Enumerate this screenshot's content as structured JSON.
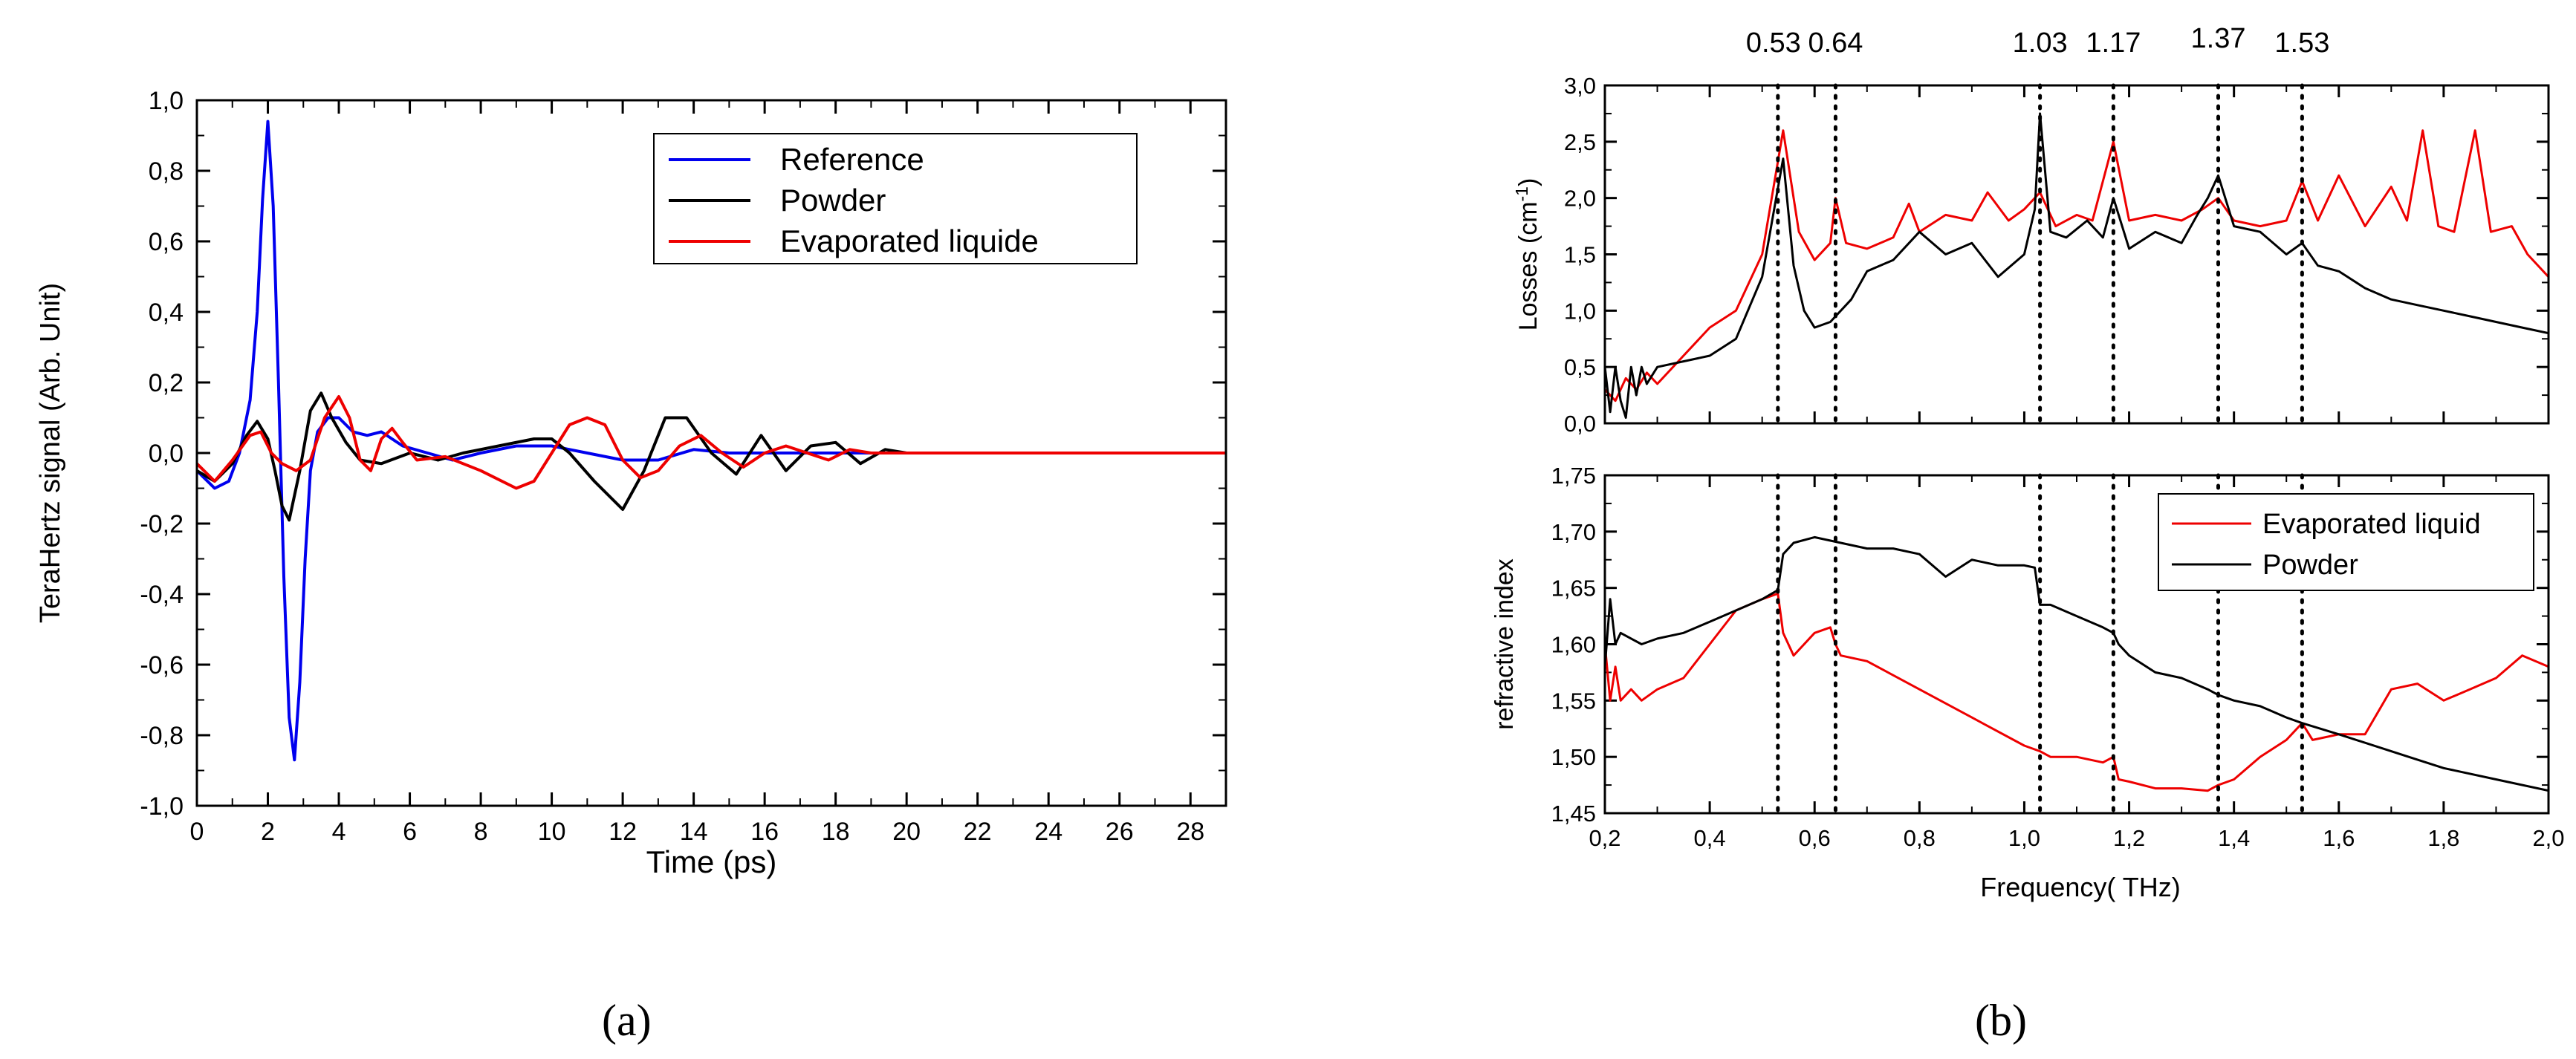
{
  "chart_data": [
    {
      "panel": "a",
      "type": "line",
      "caption": "(a)",
      "title": "",
      "xlabel": "Time (ps)",
      "ylabel": "TeraHertz signal (Arb. Unit)",
      "xlim": [
        0,
        29
      ],
      "ylim": [
        -1.0,
        1.0
      ],
      "xticks": [
        0,
        2,
        4,
        6,
        8,
        10,
        12,
        14,
        16,
        18,
        20,
        22,
        24,
        26,
        28
      ],
      "yticks": [
        -1.0,
        -0.8,
        -0.6,
        -0.4,
        -0.2,
        0.0,
        0.2,
        0.4,
        0.6,
        0.8,
        1.0
      ],
      "tick_labels_y": [
        "-1,0",
        "-0,8",
        "-0,6",
        "-0,4",
        "-0,2",
        "0,0",
        "0,2",
        "0,4",
        "0,6",
        "0,8",
        "1,0"
      ],
      "tick_labels_x": [
        "0",
        "2",
        "4",
        "6",
        "8",
        "10",
        "12",
        "14",
        "16",
        "18",
        "20",
        "22",
        "24",
        "26",
        "28"
      ],
      "legend_position": "top-right",
      "series": [
        {
          "name": "Reference",
          "color": "#0000ee",
          "x": [
            0,
            0.5,
            0.9,
            1.2,
            1.5,
            1.7,
            1.85,
            2.0,
            2.15,
            2.3,
            2.45,
            2.6,
            2.75,
            2.9,
            3.05,
            3.2,
            3.4,
            3.7,
            4.0,
            4.4,
            4.8,
            5.2,
            5.8,
            6.5,
            7.2,
            8.0,
            9.0,
            10.0,
            11.0,
            12.0,
            13.0,
            14.0,
            15.0,
            16.0,
            17.0,
            18.0,
            19.0,
            20.0,
            22.0,
            24.0,
            26.0,
            28.0,
            29.0
          ],
          "values": [
            -0.05,
            -0.1,
            -0.08,
            0.0,
            0.15,
            0.4,
            0.72,
            0.94,
            0.7,
            0.2,
            -0.35,
            -0.75,
            -0.87,
            -0.65,
            -0.3,
            -0.05,
            0.06,
            0.1,
            0.1,
            0.06,
            0.05,
            0.06,
            0.02,
            0.0,
            -0.02,
            0.0,
            0.02,
            0.02,
            0.0,
            -0.02,
            -0.02,
            0.01,
            0.0,
            0.0,
            0.0,
            0.0,
            0.0,
            0.0,
            0.0,
            0.0,
            0.0,
            0.0,
            0.0
          ]
        },
        {
          "name": "Powder",
          "color": "#000000",
          "x": [
            0,
            0.5,
            1.0,
            1.4,
            1.7,
            2.0,
            2.2,
            2.4,
            2.6,
            2.9,
            3.2,
            3.5,
            3.8,
            4.2,
            4.6,
            5.2,
            6.0,
            6.8,
            7.5,
            8.5,
            9.5,
            10.0,
            10.5,
            11.2,
            12.0,
            12.6,
            13.2,
            13.8,
            14.5,
            15.2,
            15.9,
            16.6,
            17.3,
            18.0,
            18.7,
            19.4,
            20.0,
            21.0,
            22.0,
            24.0,
            26.0,
            28.0,
            29.0
          ],
          "values": [
            -0.05,
            -0.08,
            -0.03,
            0.05,
            0.09,
            0.04,
            -0.05,
            -0.15,
            -0.19,
            -0.05,
            0.12,
            0.17,
            0.1,
            0.03,
            -0.02,
            -0.03,
            0.0,
            -0.02,
            0.0,
            0.02,
            0.04,
            0.04,
            0.0,
            -0.08,
            -0.16,
            -0.05,
            0.1,
            0.1,
            0.0,
            -0.06,
            0.05,
            -0.05,
            0.02,
            0.03,
            -0.03,
            0.01,
            0.0,
            0.0,
            0.0,
            0.0,
            0.0,
            0.0,
            0.0
          ]
        },
        {
          "name": "Evaporated liquide",
          "color": "#ee0000",
          "x": [
            0,
            0.5,
            1.0,
            1.5,
            1.8,
            2.1,
            2.4,
            2.8,
            3.2,
            3.6,
            4.0,
            4.3,
            4.6,
            4.9,
            5.2,
            5.5,
            5.8,
            6.2,
            7.0,
            8.0,
            9.0,
            9.5,
            10.0,
            10.5,
            11.0,
            11.5,
            12.0,
            12.5,
            13.0,
            13.6,
            14.2,
            14.8,
            15.4,
            16.0,
            16.6,
            17.2,
            17.8,
            18.4,
            19.0,
            20.0,
            22.0,
            24.0,
            26.0,
            28.0,
            29.0
          ],
          "values": [
            -0.03,
            -0.08,
            -0.02,
            0.05,
            0.06,
            0.0,
            -0.03,
            -0.05,
            -0.02,
            0.1,
            0.16,
            0.1,
            -0.02,
            -0.05,
            0.04,
            0.07,
            0.03,
            -0.02,
            -0.01,
            -0.05,
            -0.1,
            -0.08,
            0.0,
            0.08,
            0.1,
            0.08,
            -0.02,
            -0.07,
            -0.05,
            0.02,
            0.05,
            0.0,
            -0.04,
            0.0,
            0.02,
            0.0,
            -0.02,
            0.01,
            0.0,
            0.0,
            0.0,
            0.0,
            0.0,
            0.0,
            0.0
          ]
        }
      ]
    },
    {
      "panel": "b",
      "type": "line",
      "caption": "(b)",
      "xlabel": "Frequency( THz)",
      "xlim": [
        0.2,
        2.0
      ],
      "xticks": [
        0.2,
        0.4,
        0.6,
        0.8,
        1.0,
        1.2,
        1.4,
        1.6,
        1.8,
        2.0
      ],
      "tick_labels_x": [
        "0,2",
        "0,4",
        "0,6",
        "0,8",
        "1,0",
        "1,2",
        "1,4",
        "1,6",
        "1,8",
        "2,0"
      ],
      "marker_lines": [
        0.53,
        0.64,
        1.03,
        1.17,
        1.37,
        1.53
      ],
      "marker_labels": [
        "0.53",
        "0.64",
        "1.03",
        "1.17",
        "1.37",
        "1.53"
      ],
      "subplots": [
        {
          "name": "losses",
          "ylabel": "Losses (cm",
          "ylabel_sup": "-1",
          "ylabel_close": ")",
          "ylim": [
            0.0,
            3.0
          ],
          "yticks": [
            0.0,
            0.5,
            1.0,
            1.5,
            2.0,
            2.5,
            3.0
          ],
          "tick_labels_y": [
            "0,0",
            "0,5",
            "1,0",
            "1,5",
            "2,0",
            "2,5",
            "3,0"
          ],
          "series": [
            {
              "name": "Evaporated liquid",
              "color": "#ee0000",
              "x": [
                0.2,
                0.22,
                0.24,
                0.26,
                0.28,
                0.3,
                0.35,
                0.4,
                0.45,
                0.5,
                0.54,
                0.57,
                0.6,
                0.63,
                0.64,
                0.66,
                0.7,
                0.75,
                0.78,
                0.8,
                0.85,
                0.9,
                0.93,
                0.97,
                1.0,
                1.03,
                1.06,
                1.1,
                1.13,
                1.17,
                1.2,
                1.25,
                1.3,
                1.34,
                1.37,
                1.4,
                1.45,
                1.5,
                1.53,
                1.56,
                1.6,
                1.65,
                1.7,
                1.73,
                1.76,
                1.79,
                1.82,
                1.86,
                1.89,
                1.93,
                1.96,
                2.0
              ],
              "values": [
                0.3,
                0.2,
                0.4,
                0.3,
                0.45,
                0.35,
                0.6,
                0.85,
                1.0,
                1.5,
                2.6,
                1.7,
                1.45,
                1.6,
                2.0,
                1.6,
                1.55,
                1.65,
                1.95,
                1.7,
                1.85,
                1.8,
                2.05,
                1.8,
                1.9,
                2.05,
                1.75,
                1.85,
                1.8,
                2.5,
                1.8,
                1.85,
                1.8,
                1.9,
                2.0,
                1.8,
                1.75,
                1.8,
                2.15,
                1.8,
                2.2,
                1.75,
                2.1,
                1.8,
                2.6,
                1.75,
                1.7,
                2.6,
                1.7,
                1.75,
                1.5,
                1.3
              ]
            },
            {
              "name": "Powder",
              "color": "#000000",
              "x": [
                0.2,
                0.21,
                0.22,
                0.23,
                0.24,
                0.25,
                0.26,
                0.27,
                0.28,
                0.3,
                0.35,
                0.4,
                0.45,
                0.5,
                0.54,
                0.56,
                0.58,
                0.6,
                0.63,
                0.67,
                0.7,
                0.75,
                0.8,
                0.85,
                0.9,
                0.95,
                1.0,
                1.02,
                1.03,
                1.05,
                1.08,
                1.12,
                1.15,
                1.17,
                1.2,
                1.25,
                1.3,
                1.33,
                1.35,
                1.37,
                1.4,
                1.45,
                1.5,
                1.53,
                1.56,
                1.6,
                1.65,
                1.7,
                1.75,
                1.8,
                1.85,
                1.9,
                1.95,
                2.0
              ],
              "values": [
                0.5,
                0.1,
                0.5,
                0.2,
                0.05,
                0.5,
                0.25,
                0.5,
                0.35,
                0.5,
                0.55,
                0.6,
                0.75,
                1.3,
                2.35,
                1.4,
                1.0,
                0.85,
                0.9,
                1.1,
                1.35,
                1.45,
                1.7,
                1.5,
                1.6,
                1.3,
                1.5,
                1.9,
                2.75,
                1.7,
                1.65,
                1.8,
                1.65,
                2.0,
                1.55,
                1.7,
                1.6,
                1.85,
                2.0,
                2.2,
                1.75,
                1.7,
                1.5,
                1.6,
                1.4,
                1.35,
                1.2,
                1.1,
                1.05,
                1.0,
                0.95,
                0.9,
                0.85,
                0.8
              ]
            }
          ]
        },
        {
          "name": "refractive",
          "ylabel": "refractive index",
          "ylim": [
            1.45,
            1.75
          ],
          "yticks": [
            1.45,
            1.5,
            1.55,
            1.6,
            1.65,
            1.7,
            1.75
          ],
          "tick_labels_y": [
            "1,45",
            "1,50",
            "1,55",
            "1,60",
            "1,65",
            "1,70",
            "1,75"
          ],
          "legend_position": "top-right",
          "legend_items": [
            "Evaporated liquid",
            "Powder"
          ],
          "series": [
            {
              "name": "Evaporated liquid",
              "color": "#ee0000",
              "x": [
                0.2,
                0.21,
                0.22,
                0.23,
                0.25,
                0.27,
                0.3,
                0.35,
                0.4,
                0.45,
                0.5,
                0.53,
                0.54,
                0.56,
                0.6,
                0.63,
                0.64,
                0.65,
                0.7,
                0.8,
                0.9,
                1.0,
                1.03,
                1.05,
                1.1,
                1.15,
                1.17,
                1.18,
                1.2,
                1.25,
                1.3,
                1.35,
                1.37,
                1.4,
                1.45,
                1.5,
                1.53,
                1.55,
                1.6,
                1.65,
                1.7,
                1.75,
                1.8,
                1.85,
                1.9,
                1.95,
                2.0
              ],
              "values": [
                1.6,
                1.55,
                1.58,
                1.55,
                1.56,
                1.55,
                1.56,
                1.57,
                1.6,
                1.63,
                1.64,
                1.645,
                1.61,
                1.59,
                1.61,
                1.615,
                1.6,
                1.59,
                1.585,
                1.56,
                1.535,
                1.51,
                1.505,
                1.5,
                1.5,
                1.495,
                1.5,
                1.48,
                1.478,
                1.472,
                1.472,
                1.47,
                1.475,
                1.48,
                1.5,
                1.515,
                1.53,
                1.515,
                1.52,
                1.52,
                1.56,
                1.565,
                1.55,
                1.56,
                1.57,
                1.59,
                1.58
              ]
            },
            {
              "name": "Powder",
              "color": "#000000",
              "x": [
                0.2,
                0.21,
                0.22,
                0.23,
                0.25,
                0.27,
                0.3,
                0.35,
                0.4,
                0.45,
                0.5,
                0.53,
                0.54,
                0.56,
                0.6,
                0.65,
                0.7,
                0.75,
                0.8,
                0.85,
                0.9,
                0.95,
                1.0,
                1.02,
                1.03,
                1.05,
                1.1,
                1.15,
                1.17,
                1.18,
                1.2,
                1.25,
                1.3,
                1.35,
                1.37,
                1.4,
                1.45,
                1.5,
                1.53,
                1.6,
                1.7,
                1.8,
                1.9,
                2.0
              ],
              "values": [
                1.58,
                1.64,
                1.6,
                1.61,
                1.605,
                1.6,
                1.605,
                1.61,
                1.62,
                1.63,
                1.64,
                1.648,
                1.68,
                1.69,
                1.695,
                1.69,
                1.685,
                1.685,
                1.68,
                1.66,
                1.675,
                1.67,
                1.67,
                1.668,
                1.635,
                1.635,
                1.625,
                1.615,
                1.61,
                1.6,
                1.59,
                1.575,
                1.57,
                1.56,
                1.555,
                1.55,
                1.545,
                1.535,
                1.53,
                1.52,
                1.505,
                1.49,
                1.48,
                1.47
              ]
            }
          ]
        }
      ]
    }
  ]
}
